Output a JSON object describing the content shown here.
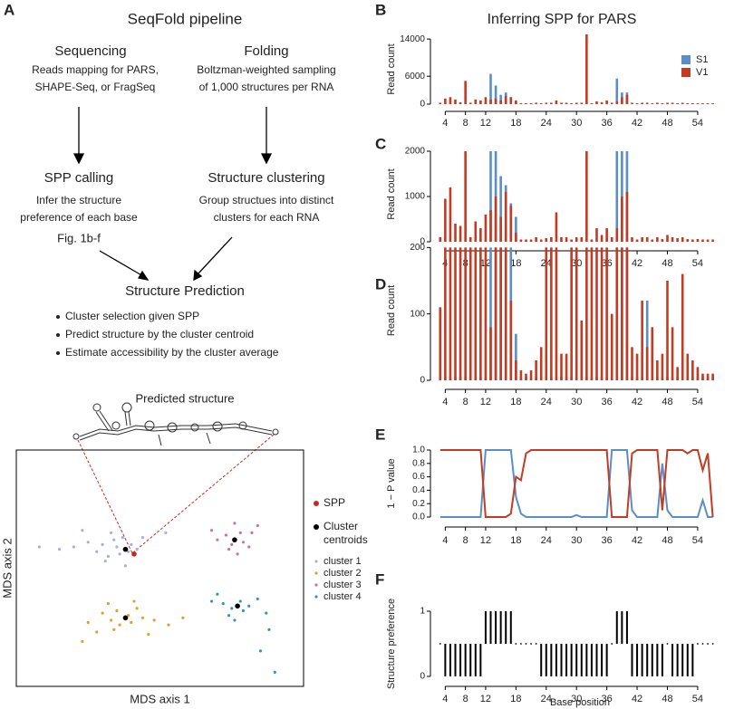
{
  "diagram": {
    "panel": "A",
    "title": "SeqFold pipeline",
    "steps": [
      {
        "title": "Sequencing",
        "lines": [
          "Reads mapping for PARS,",
          "SHAPE-Seq, or FragSeq"
        ]
      },
      {
        "title": "Folding",
        "lines": [
          "Boltzman-weighted sampling",
          "of 1,000 structures per RNA"
        ]
      },
      {
        "title": "SPP calling",
        "lines": [
          "Infer the structure",
          "preference of each base"
        ],
        "note": "Fig. 1b-f"
      },
      {
        "title": "Structure clustering",
        "lines": [
          "Group structues into distinct",
          "clusters for each RNA"
        ]
      }
    ],
    "prediction": {
      "title": "Structure Prediction",
      "bullets": [
        "Cluster selection given SPP",
        "Predict structure by the cluster centroid",
        "Estimate accessibility by the cluster average"
      ]
    },
    "structure_label": "Predicted structure"
  },
  "chart_data": [
    {
      "panel": "B",
      "type": "bar",
      "title": "Inferring SPP for PARS",
      "ylabel": "Read count",
      "legend": "upper right",
      "x": [
        3,
        4,
        5,
        6,
        7,
        8,
        9,
        10,
        11,
        12,
        13,
        14,
        15,
        16,
        17,
        18,
        19,
        20,
        21,
        22,
        23,
        24,
        25,
        26,
        27,
        28,
        29,
        30,
        31,
        32,
        33,
        34,
        35,
        36,
        37,
        38,
        39,
        40,
        41,
        42,
        43,
        44,
        45,
        46,
        47,
        48,
        49,
        50,
        51,
        52,
        53,
        54,
        55,
        56,
        57
      ],
      "xlim": [
        2.5,
        58.5
      ],
      "xticks": [
        4,
        8,
        12,
        18,
        24,
        30,
        36,
        42,
        48,
        54
      ],
      "ylim": [
        0,
        15000
      ],
      "yticks": [
        0,
        6000,
        14000
      ],
      "series": [
        {
          "name": "S1",
          "color": "#5a8ec6",
          "values": [
            100,
            100,
            100,
            100,
            100,
            100,
            100,
            100,
            100,
            300,
            6500,
            4000,
            2000,
            2500,
            1500,
            300,
            100,
            100,
            100,
            100,
            100,
            100,
            100,
            100,
            100,
            100,
            100,
            100,
            100,
            100,
            100,
            100,
            100,
            100,
            100,
            5500,
            2500,
            2500,
            100,
            100,
            100,
            100,
            100,
            100,
            100,
            100,
            100,
            100,
            100,
            100,
            100,
            100,
            100,
            100,
            100
          ]
        },
        {
          "name": "V1",
          "color": "#c23b22",
          "values": [
            300,
            1200,
            1500,
            1000,
            400,
            5000,
            300,
            1000,
            800,
            1500,
            1000,
            1200,
            800,
            1800,
            1500,
            800,
            200,
            200,
            200,
            300,
            200,
            300,
            300,
            800,
            300,
            300,
            200,
            300,
            300,
            15000,
            200,
            600,
            400,
            800,
            300,
            600,
            1500,
            2000,
            300,
            200,
            300,
            300,
            200,
            300,
            200,
            300,
            300,
            200,
            300,
            200,
            200,
            200,
            200,
            200,
            200
          ]
        }
      ]
    },
    {
      "panel": "C",
      "type": "bar",
      "ylabel": "Read count",
      "x": [
        3,
        4,
        5,
        6,
        7,
        8,
        9,
        10,
        11,
        12,
        13,
        14,
        15,
        16,
        17,
        18,
        19,
        20,
        21,
        22,
        23,
        24,
        25,
        26,
        27,
        28,
        29,
        30,
        31,
        32,
        33,
        34,
        35,
        36,
        37,
        38,
        39,
        40,
        41,
        42,
        43,
        44,
        45,
        46,
        47,
        48,
        49,
        50,
        51,
        52,
        53,
        54,
        55,
        56,
        57
      ],
      "xlim": [
        2.5,
        58.5
      ],
      "xticks": [
        4,
        8,
        12,
        18,
        24,
        30,
        36,
        42,
        48,
        54
      ],
      "ylim": [
        0,
        2100
      ],
      "yticks": [
        0,
        1000,
        2000
      ],
      "series": [
        {
          "color": "#5a8ec6",
          "values": [
            20,
            20,
            20,
            20,
            20,
            20,
            20,
            20,
            20,
            20,
            2000,
            2000,
            1450,
            1250,
            850,
            550,
            20,
            20,
            20,
            20,
            20,
            20,
            20,
            20,
            20,
            20,
            20,
            20,
            20,
            20,
            20,
            20,
            20,
            20,
            20,
            2000,
            2000,
            2000,
            20,
            20,
            20,
            20,
            20,
            20,
            20,
            20,
            20,
            20,
            20,
            20,
            20,
            20,
            20,
            20,
            20
          ]
        },
        {
          "color": "#c23b22",
          "values": [
            100,
            950,
            1200,
            400,
            350,
            2000,
            100,
            450,
            300,
            600,
            700,
            1000,
            550,
            1100,
            800,
            200,
            50,
            50,
            50,
            100,
            50,
            80,
            100,
            650,
            100,
            100,
            50,
            100,
            100,
            2000,
            50,
            300,
            150,
            300,
            100,
            300,
            1000,
            1100,
            100,
            50,
            100,
            100,
            50,
            100,
            60,
            150,
            100,
            80,
            100,
            60,
            50,
            60,
            50,
            50,
            50
          ]
        }
      ]
    },
    {
      "panel": "D",
      "type": "bar",
      "ylabel": "Read count",
      "x": [
        3,
        4,
        5,
        6,
        7,
        8,
        9,
        10,
        11,
        12,
        13,
        14,
        15,
        16,
        17,
        18,
        19,
        20,
        21,
        22,
        23,
        24,
        25,
        26,
        27,
        28,
        29,
        30,
        31,
        32,
        33,
        34,
        35,
        36,
        37,
        38,
        39,
        40,
        41,
        42,
        43,
        44,
        45,
        46,
        47,
        48,
        49,
        50,
        51,
        52,
        53,
        54,
        55,
        56,
        57
      ],
      "xlim": [
        2.5,
        58.5
      ],
      "xticks": [
        4,
        8,
        12,
        18,
        24,
        30,
        36,
        42,
        48,
        54
      ],
      "ylim": [
        0,
        210
      ],
      "yticks": [
        0,
        100,
        200
      ],
      "series": [
        {
          "color": "#5a8ec6",
          "values": [
            5,
            5,
            5,
            5,
            5,
            5,
            5,
            5,
            5,
            5,
            200,
            200,
            200,
            200,
            200,
            70,
            5,
            5,
            5,
            5,
            5,
            5,
            5,
            5,
            5,
            5,
            5,
            5,
            5,
            5,
            5,
            5,
            5,
            5,
            5,
            200,
            200,
            200,
            5,
            5,
            5,
            120,
            5,
            5,
            5,
            5,
            5,
            5,
            5,
            5,
            5,
            5,
            5,
            5,
            5
          ]
        },
        {
          "color": "#c23b22",
          "values": [
            110,
            200,
            200,
            200,
            200,
            200,
            200,
            200,
            200,
            200,
            80,
            200,
            200,
            200,
            120,
            30,
            15,
            10,
            15,
            30,
            50,
            200,
            200,
            200,
            40,
            40,
            200,
            200,
            90,
            200,
            200,
            200,
            200,
            200,
            100,
            200,
            200,
            200,
            50,
            40,
            120,
            50,
            80,
            30,
            40,
            150,
            80,
            20,
            160,
            40,
            30,
            20,
            10,
            10,
            10
          ]
        }
      ]
    },
    {
      "panel": "E",
      "type": "line",
      "ylabel": "1 − P value",
      "x": [
        3,
        4,
        5,
        6,
        7,
        8,
        9,
        10,
        11,
        12,
        13,
        14,
        15,
        16,
        17,
        18,
        19,
        20,
        21,
        22,
        23,
        24,
        25,
        26,
        27,
        28,
        29,
        30,
        31,
        32,
        33,
        34,
        35,
        36,
        37,
        38,
        39,
        40,
        41,
        42,
        43,
        44,
        45,
        46,
        47,
        48,
        49,
        50,
        51,
        52,
        53,
        54,
        55,
        56,
        57
      ],
      "xlim": [
        2.5,
        58.5
      ],
      "xticks": [
        4,
        8,
        12,
        18,
        24,
        30,
        36,
        42,
        48,
        54
      ],
      "ylim": [
        0,
        1
      ],
      "yticks": [
        {
          "value": 0,
          "label": "0.0"
        },
        {
          "value": 0.2,
          "label": "0.2"
        },
        {
          "value": 0.4,
          "label": "0.4"
        },
        {
          "value": 0.6,
          "label": "0.6"
        },
        {
          "value": 0.8,
          "label": "0.8"
        },
        {
          "value": 1,
          "label": "1.0"
        }
      ],
      "series": [
        {
          "color": "#5a8ec6",
          "values": [
            0,
            0,
            0,
            0,
            0,
            0,
            0,
            0,
            0,
            1,
            1,
            1,
            1,
            1,
            1,
            0.3,
            0.05,
            0,
            0,
            0,
            0,
            0,
            0,
            0,
            0,
            0,
            0,
            0.03,
            0,
            0,
            0,
            0,
            0,
            0,
            1,
            1,
            1,
            1,
            0.1,
            0,
            0,
            0,
            0,
            0,
            0.8,
            0.1,
            0,
            0,
            0,
            0,
            0,
            0,
            0.25,
            0,
            0
          ]
        },
        {
          "color": "#c23b22",
          "values": [
            1,
            1,
            1,
            1,
            1,
            1,
            1,
            1,
            1,
            0,
            0,
            0,
            0,
            0,
            0.05,
            0.6,
            0.55,
            0.95,
            1,
            1,
            1,
            1,
            1,
            1,
            1,
            1,
            1,
            1,
            1,
            1,
            1,
            1,
            1,
            1,
            0,
            0,
            0,
            0,
            0.95,
            1,
            1,
            1,
            1,
            1,
            0.1,
            1,
            1,
            1,
            1,
            0.95,
            1,
            1,
            0.7,
            0.95,
            0
          ]
        }
      ]
    },
    {
      "panel": "F",
      "type": "stem",
      "ylabel": "Structure preference",
      "xlabel": "Base position",
      "x": [
        3,
        4,
        5,
        6,
        7,
        8,
        9,
        10,
        11,
        12,
        13,
        14,
        15,
        16,
        17,
        18,
        19,
        20,
        21,
        22,
        23,
        24,
        25,
        26,
        27,
        28,
        29,
        30,
        31,
        32,
        33,
        34,
        35,
        36,
        37,
        38,
        39,
        40,
        41,
        42,
        43,
        44,
        45,
        46,
        47,
        48,
        49,
        50,
        51,
        52,
        53,
        54,
        55,
        56,
        57
      ],
      "xlim": [
        2.5,
        58.5
      ],
      "xticks": [
        4,
        8,
        12,
        18,
        24,
        30,
        36,
        42,
        48,
        54
      ],
      "ylim": [
        0,
        1
      ],
      "yticks": [
        0,
        1
      ],
      "color": "#000000",
      "values": [
        0.5,
        0,
        0,
        0,
        0,
        0,
        0,
        0,
        0,
        1,
        1,
        1,
        1,
        1,
        1,
        0.5,
        0.5,
        0.5,
        0.5,
        0.5,
        0,
        0,
        0,
        0,
        0,
        0,
        0,
        0,
        0,
        0,
        0,
        0,
        0,
        0,
        0.5,
        1,
        1,
        1,
        0,
        0,
        0,
        0,
        0,
        0,
        0,
        0.5,
        0,
        0,
        0,
        0,
        0,
        0.5,
        0.5,
        0.5,
        0.5
      ]
    },
    {
      "type": "scatter",
      "xlabel": "MDS axis 1",
      "ylabel": "MDS axis 2",
      "xlim": [
        0,
        10
      ],
      "ylim": [
        0,
        10
      ],
      "series": [
        {
          "name": "SPP",
          "color": "#c8281e",
          "x": [
            4.1
          ],
          "y": [
            5.6
          ]
        },
        {
          "name": "Cluster centroids",
          "color": "#000000",
          "x": [
            3.8,
            3.8,
            7.6,
            7.7
          ],
          "y": [
            5.8,
            2.9,
            6.2,
            3.4
          ]
        },
        {
          "name": "cluster 1",
          "color": "#a9aedd",
          "x": [
            2.0,
            2.5,
            2.8,
            3.0,
            3.2,
            3.4,
            3.5,
            3.6,
            3.7,
            3.9,
            4.0,
            4.2,
            3.3,
            3.1,
            4.4,
            1.5,
            0.8,
            2.3,
            5.2,
            3.8
          ],
          "y": [
            5.9,
            6.1,
            5.7,
            6.0,
            5.5,
            6.2,
            5.9,
            5.6,
            6.3,
            5.7,
            6.0,
            5.8,
            6.5,
            5.3,
            6.3,
            5.8,
            5.9,
            6.6,
            6.5,
            5.1
          ]
        },
        {
          "name": "cluster 2",
          "color": "#e0a030",
          "x": [
            2.5,
            3.0,
            3.3,
            3.5,
            3.6,
            3.9,
            4.0,
            4.2,
            4.4,
            4.8,
            5.3,
            2.8,
            3.2,
            4.6,
            2.3,
            5.8,
            3.4,
            4.1
          ],
          "y": [
            2.7,
            3.1,
            2.8,
            3.2,
            2.6,
            3.0,
            2.7,
            3.3,
            2.9,
            2.8,
            2.6,
            2.3,
            3.5,
            2.2,
            1.9,
            2.9,
            2.4,
            3.6
          ]
        },
        {
          "name": "cluster 3",
          "color": "#d070a0",
          "x": [
            7.3,
            7.5,
            7.8,
            7.9,
            7.4,
            8.2,
            8.4,
            7.0,
            7.7,
            8.1,
            6.8,
            7.6
          ],
          "y": [
            6.4,
            6.0,
            6.5,
            6.1,
            5.8,
            6.5,
            6.8,
            6.2,
            5.6,
            5.9,
            6.6,
            6.9
          ]
        },
        {
          "name": "cluster 4",
          "color": "#3a8fc8",
          "x": [
            7.2,
            7.5,
            7.8,
            7.9,
            8.1,
            7.4,
            8.4,
            8.7,
            6.8,
            7.6,
            8.8,
            8.5,
            9.0,
            7.0
          ],
          "y": [
            3.5,
            3.3,
            3.6,
            3.2,
            3.4,
            3.0,
            3.7,
            3.1,
            3.6,
            2.8,
            2.4,
            1.5,
            0.6,
            3.9
          ]
        }
      ]
    }
  ]
}
